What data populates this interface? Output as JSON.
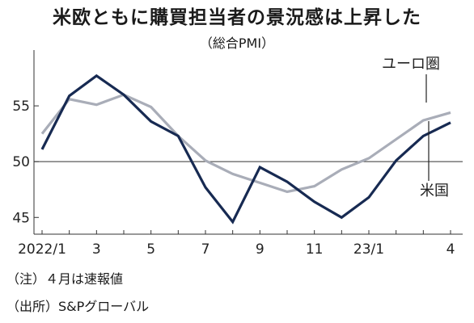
{
  "header": {
    "title": "米欧ともに購買担当者の景況感は上昇した",
    "subtitle": "（総合PMI）"
  },
  "notes": {
    "note1": "（注）４月は速報値",
    "note2": "（出所）S&Pグローバル"
  },
  "colors": {
    "euro": "#a9adb8",
    "us": "#172a52",
    "axis": "#333333"
  },
  "chart_data": {
    "type": "line",
    "x": [
      "2022/1",
      "2",
      "3",
      "4",
      "5",
      "6",
      "7",
      "8",
      "9",
      "10",
      "11",
      "12",
      "23/1",
      "2",
      "3",
      "4"
    ],
    "x_tick_labels": [
      "2022/1",
      "",
      "3",
      "",
      "5",
      "",
      "7",
      "",
      "9",
      "",
      "11",
      "",
      "23/1",
      "",
      "",
      "4"
    ],
    "ylim": [
      43.5,
      60
    ],
    "yticks": [
      45,
      50,
      55
    ],
    "reference_line": 50,
    "grid": false,
    "series": [
      {
        "name": "ユーロ圏",
        "values": [
          52.5,
          55.6,
          55.1,
          56.0,
          54.9,
          52.3,
          50.1,
          48.9,
          48.1,
          47.3,
          47.8,
          49.3,
          50.3,
          52.0,
          53.7,
          54.4
        ]
      },
      {
        "name": "米国",
        "values": [
          51.1,
          55.9,
          57.7,
          56.0,
          53.6,
          52.3,
          47.7,
          44.6,
          49.5,
          48.2,
          46.4,
          45.0,
          46.8,
          50.1,
          52.3,
          53.5
        ]
      }
    ]
  }
}
